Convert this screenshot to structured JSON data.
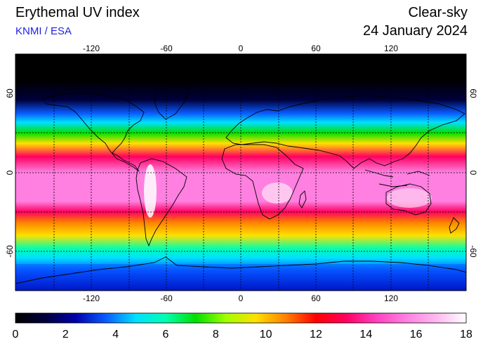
{
  "header": {
    "title": "Erythemal UV index",
    "credit": "KNMI / ESA",
    "mode": "Clear-sky",
    "date": "24 January 2024"
  },
  "map": {
    "projection": "equirectangular",
    "lon_ticks": [
      "-120",
      "-60",
      "0",
      "60",
      "120"
    ],
    "lat_ticks": [
      "60",
      "0",
      "-60"
    ],
    "gridlines": "dotted every 30 degrees",
    "uv_band_profile": [
      {
        "lat": 90,
        "uv": 0
      },
      {
        "lat": 70,
        "uv": 0.3
      },
      {
        "lat": 55,
        "uv": 1.5
      },
      {
        "lat": 45,
        "uv": 3
      },
      {
        "lat": 38,
        "uv": 5
      },
      {
        "lat": 30,
        "uv": 7.5
      },
      {
        "lat": 22,
        "uv": 10
      },
      {
        "lat": 12,
        "uv": 13
      },
      {
        "lat": 0,
        "uv": 15.5
      },
      {
        "lat": -12,
        "uv": 16
      },
      {
        "lat": -22,
        "uv": 15
      },
      {
        "lat": -30,
        "uv": 13
      },
      {
        "lat": -38,
        "uv": 11
      },
      {
        "lat": -48,
        "uv": 9
      },
      {
        "lat": -58,
        "uv": 6.5
      },
      {
        "lat": -65,
        "uv": 4.5
      },
      {
        "lat": -75,
        "uv": 3
      },
      {
        "lat": -90,
        "uv": 2
      }
    ]
  },
  "colorbar": {
    "min": 0,
    "max": 18,
    "labels": [
      "0",
      "2",
      "4",
      "6",
      "8",
      "10",
      "12",
      "14",
      "16",
      "18"
    ],
    "colors": [
      "#000000",
      "#00003c",
      "#0000aa",
      "#0a5aff",
      "#00e0ff",
      "#00ffb0",
      "#00e000",
      "#a0ff00",
      "#ffe000",
      "#ff8000",
      "#ff0000",
      "#ff0060",
      "#ff40c0",
      "#ff80e0",
      "#ffb8f0",
      "#ffffff"
    ]
  }
}
